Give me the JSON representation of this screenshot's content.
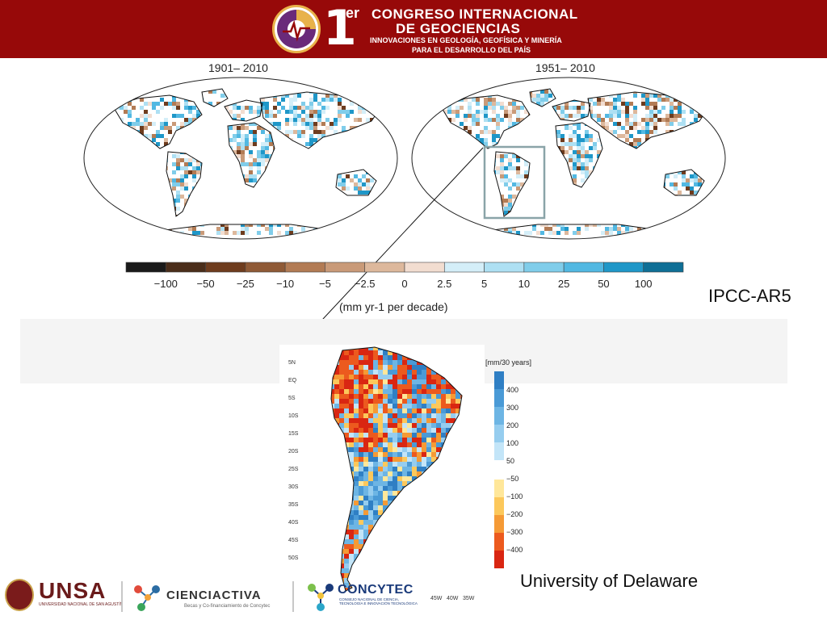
{
  "header": {
    "logo_number": "1",
    "logo_superscript": "er",
    "line1": "CONGRESO INTERNACIONAL",
    "line2": "DE GEOCIENCIAS",
    "line3": "INNOVACIONES EN GEOLOGÍA, GEOFÍSICA Y MINERÍA",
    "line4": "PARA EL DESARROLLO DEL PAÍS",
    "colors": {
      "bar": "#970909",
      "gold": "#e8b24a",
      "purple": "#6a2a7a"
    }
  },
  "chart_data": [
    {
      "type": "heatmap",
      "title": "1901– 2010",
      "subject": "global map of observed annual precipitation trend"
    },
    {
      "type": "heatmap",
      "title": "1951– 2010",
      "subject": "global map of observed annual precipitation trend",
      "highlight": "South America (box)"
    },
    {
      "type": "heatmap",
      "legend_title": "(mm yr-1 per decade)",
      "colorbar_ticks": [
        "−100",
        "−50",
        "−25",
        "−10",
        "−5",
        "−2.5",
        "0",
        "2.5",
        "5",
        "10",
        "25",
        "50",
        "100"
      ],
      "colorbar_colors": [
        "#1a1a1a",
        "#4a2d1a",
        "#6e3c1e",
        "#8f5a36",
        "#b27b54",
        "#c99a78",
        "#ddb89c",
        "#f2ddd0",
        "#d4eef8",
        "#aee0f3",
        "#80cdea",
        "#52b8e2",
        "#1f97c8",
        "#0f6f96"
      ]
    },
    {
      "type": "heatmap",
      "subject": "South America precipitation change map",
      "legend_title": "[mm/30 years]",
      "colorbar_ticks_positive": [
        "400",
        "300",
        "200",
        "100",
        "50"
      ],
      "colorbar_ticks_negative": [
        "−50",
        "−100",
        "−200",
        "−300",
        "−400"
      ],
      "colorbar_colors_positive": [
        "#2f7fc4",
        "#4a9ad6",
        "#6db5e4",
        "#96cdef",
        "#c3e5f8"
      ],
      "colorbar_colors_negative": [
        "#ffe79a",
        "#fcc85b",
        "#f59a35",
        "#ec5a1e",
        "#d92612"
      ],
      "lat_labels": [
        "5N",
        "EQ",
        "5S",
        "10S",
        "15S",
        "20S",
        "25S",
        "30S",
        "35S",
        "40S",
        "45S",
        "50S"
      ],
      "lon_labels": [
        "45W",
        "40W",
        "35W"
      ]
    }
  ],
  "labels": {
    "ipcc": "IPCC-AR5",
    "udel": "University of Delaware"
  },
  "footer": {
    "unsa": "UNSA",
    "unsa_sub": "UNIVERSIDAD NACIONAL DE SAN AGUSTÍN",
    "cienciactiva": "CIENCIACTIVA",
    "cienciactiva_sub": "Becas y Co-financiamiento de Concytec",
    "concytec": "CONCYTEC",
    "concytec_sub": "CONSEJO NACIONAL DE CIENCIA, TECNOLOGÍA E INNOVACIÓN TECNOLÓGICA"
  }
}
